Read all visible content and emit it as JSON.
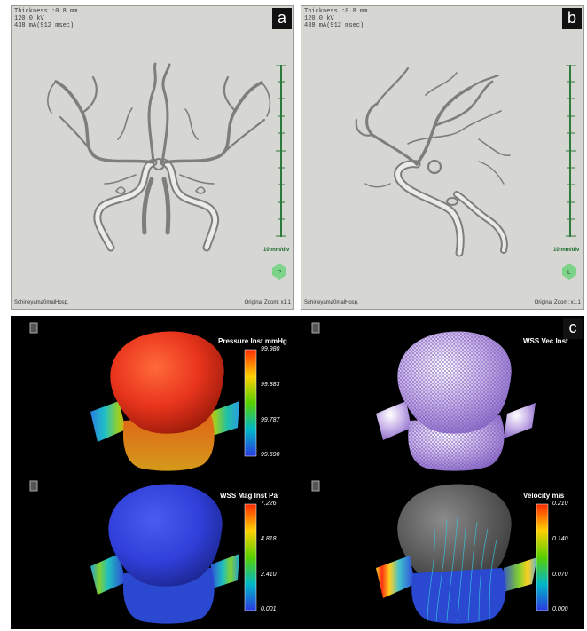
{
  "panel_a": {
    "header_line1": "Thickness :0.8 mm",
    "header_line2": "120.0 kV",
    "header_line3": "438 mA(912 msec)",
    "label": "a",
    "footer_left": "Schirleyama0malHosp.",
    "footer_right": "Original Zoom: x1.1",
    "scale_text": "10 mm/div"
  },
  "panel_b": {
    "header_line1": "Thickness :0.8 mm",
    "header_line2": "120.0 kV",
    "header_line3": "438 mA(912 msec)",
    "label": "b",
    "footer_left": "Schirleyama0malHosp.",
    "footer_right": "Original Zoom: x1.1",
    "scale_text": "10 mm/div"
  },
  "panel_c": {
    "label": "c",
    "pressure": {
      "title": "Pressure Inst mmHg",
      "ticks": [
        "99.980",
        "99.883",
        "99.787",
        "99.690"
      ]
    },
    "wss_vec": {
      "title": "WSS Vec Inst"
    },
    "wss_mag": {
      "title": "WSS Mag Inst Pa",
      "ticks": [
        "7.226",
        "4.818",
        "2.410",
        "0.001"
      ]
    },
    "velocity": {
      "title": "Velocity m/s",
      "ticks": [
        "0.210",
        "0.140",
        "0.070",
        "0.000"
      ]
    }
  },
  "colors": {
    "rainbow": [
      "#ff2a00",
      "#ffd000",
      "#58d000",
      "#00b8c8",
      "#2a3adf"
    ]
  }
}
